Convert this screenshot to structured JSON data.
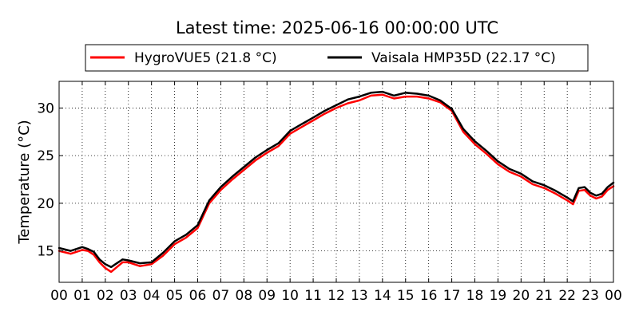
{
  "chart_data": {
    "type": "line",
    "title": "Latest time: 2025-06-16 00:00:00 UTC",
    "xlabel": "",
    "ylabel": "Temperature (°C)",
    "xlim": [
      0,
      24
    ],
    "ylim": [
      11.7,
      32.8
    ],
    "x_ticks": [
      0,
      1,
      2,
      3,
      4,
      5,
      6,
      7,
      8,
      9,
      10,
      11,
      12,
      13,
      14,
      15,
      16,
      17,
      18,
      19,
      20,
      21,
      22,
      23,
      24
    ],
    "x_tick_labels": [
      "00",
      "01",
      "02",
      "03",
      "04",
      "05",
      "06",
      "07",
      "08",
      "09",
      "10",
      "11",
      "12",
      "13",
      "14",
      "15",
      "16",
      "17",
      "18",
      "19",
      "20",
      "21",
      "22",
      "23",
      "00"
    ],
    "y_ticks": [
      15,
      20,
      25,
      30
    ],
    "y_tick_labels": [
      "15",
      "20",
      "25",
      "30"
    ],
    "grid": true,
    "legend_position": "top",
    "x": [
      0,
      0.5,
      1,
      1.25,
      1.5,
      1.75,
      2,
      2.25,
      2.5,
      2.75,
      3,
      3.5,
      4,
      4.5,
      5,
      5.5,
      6,
      6.25,
      6.5,
      7,
      7.5,
      8,
      8.5,
      9,
      9.5,
      10,
      10.5,
      11,
      11.5,
      12,
      12.5,
      13,
      13.5,
      14,
      14.5,
      15,
      15.5,
      16,
      16.5,
      17,
      17.5,
      18,
      18.5,
      19,
      19.5,
      20,
      20.5,
      21,
      21.5,
      22,
      22.25,
      22.5,
      22.75,
      23,
      23.25,
      23.5,
      23.75,
      24
    ],
    "series": [
      {
        "name": "HygroVUE5 (21.8 °C)",
        "color": "#ff0000",
        "values": [
          15.0,
          14.7,
          15.1,
          15.0,
          14.6,
          13.8,
          13.2,
          12.8,
          13.3,
          13.8,
          13.8,
          13.4,
          13.6,
          14.5,
          15.7,
          16.4,
          17.4,
          18.7,
          20.0,
          21.4,
          22.5,
          23.5,
          24.5,
          25.3,
          26.0,
          27.3,
          28.0,
          28.7,
          29.4,
          30.0,
          30.5,
          30.8,
          31.3,
          31.4,
          31.0,
          31.2,
          31.2,
          31.0,
          30.6,
          29.7,
          27.5,
          26.2,
          25.2,
          24.1,
          23.3,
          22.8,
          22.0,
          21.6,
          21.0,
          20.3,
          19.9,
          21.3,
          21.4,
          20.8,
          20.5,
          20.7,
          21.4,
          21.8
        ]
      },
      {
        "name": "Vaisala HMP35D (22.17 °C)",
        "color": "#000000",
        "values": [
          15.3,
          15.0,
          15.4,
          15.2,
          14.9,
          14.1,
          13.6,
          13.3,
          13.7,
          14.1,
          14.0,
          13.7,
          13.8,
          14.8,
          16.0,
          16.7,
          17.7,
          19.0,
          20.3,
          21.7,
          22.8,
          23.8,
          24.8,
          25.6,
          26.3,
          27.6,
          28.3,
          29.0,
          29.7,
          30.3,
          30.9,
          31.2,
          31.6,
          31.7,
          31.3,
          31.6,
          31.5,
          31.3,
          30.8,
          29.9,
          27.8,
          26.5,
          25.5,
          24.4,
          23.6,
          23.1,
          22.3,
          21.9,
          21.3,
          20.6,
          20.2,
          21.6,
          21.7,
          21.1,
          20.8,
          21.0,
          21.7,
          22.17
        ]
      }
    ]
  }
}
